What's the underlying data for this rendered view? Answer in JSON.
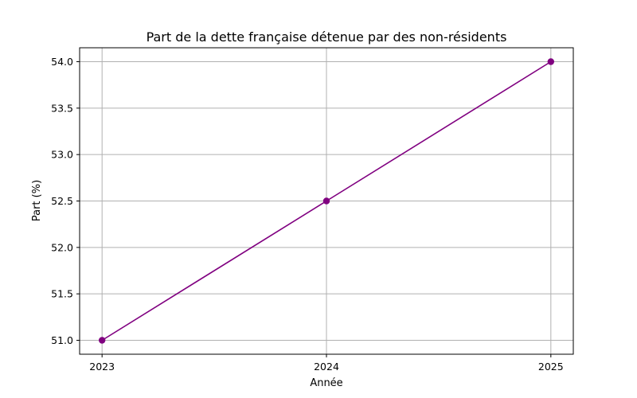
{
  "chart_data": {
    "type": "line",
    "title": "Part de la dette française détenue par des non-résidents",
    "xlabel": "Année",
    "ylabel": "Part (%)",
    "x": [
      2023,
      2024,
      2025
    ],
    "x_tick_labels": [
      "2023",
      "2024",
      "2025"
    ],
    "series": [
      {
        "values": [
          51.0,
          52.5,
          54.0
        ],
        "color": "#800080",
        "marker": "circle"
      }
    ],
    "y_ticks": [
      51.0,
      51.5,
      52.0,
      52.5,
      53.0,
      53.5,
      54.0
    ],
    "y_tick_labels": [
      "51.0",
      "51.5",
      "52.0",
      "52.5",
      "53.0",
      "53.5",
      "54.0"
    ],
    "xlim": [
      2022.9,
      2025.1
    ],
    "ylim": [
      50.85,
      54.15
    ],
    "grid": true
  }
}
